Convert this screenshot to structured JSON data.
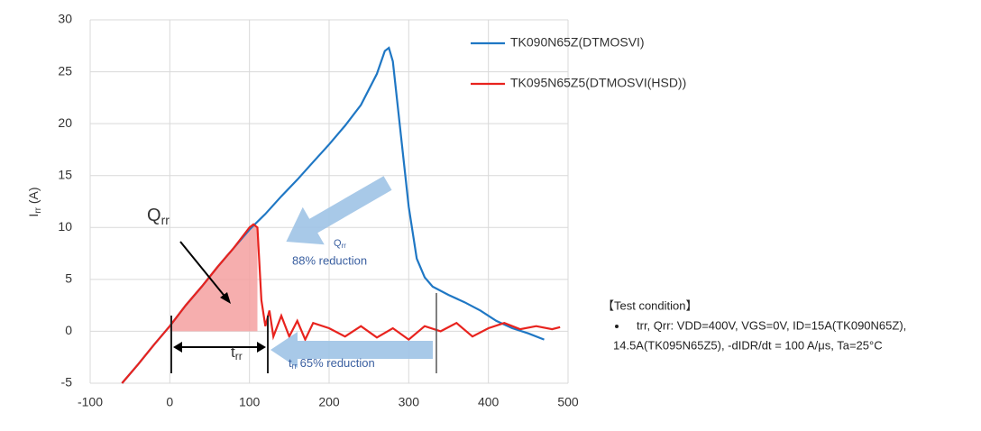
{
  "chart_data": {
    "type": "line",
    "ylabel": {
      "main": "I",
      "sub": "rr",
      "unit": " (A)"
    },
    "xlim": [
      -100,
      500
    ],
    "xticks": [
      -100,
      0,
      100,
      200,
      300,
      400,
      500
    ],
    "ylim": [
      -5,
      30
    ],
    "yticks": [
      -5,
      0,
      5,
      10,
      15,
      20,
      25,
      30
    ],
    "grid": true,
    "legend": "right",
    "series": [
      {
        "name": "TK090N65Z(DTMOSVI)",
        "color": "#1f77c4",
        "x": [
          -60,
          -40,
          -20,
          0,
          20,
          40,
          60,
          80,
          100,
          120,
          140,
          160,
          180,
          200,
          220,
          240,
          260,
          270,
          275,
          280,
          290,
          300,
          310,
          320,
          330,
          350,
          370,
          390,
          410,
          430,
          450,
          470
        ],
        "values": [
          -5,
          -3.2,
          -1.3,
          0.5,
          2.5,
          4.3,
          6.2,
          8,
          9.8,
          11.3,
          13,
          14.6,
          16.3,
          18,
          19.8,
          21.8,
          24.8,
          27,
          27.3,
          26,
          19,
          12,
          7,
          5.2,
          4.3,
          3.5,
          2.8,
          2,
          1,
          0.3,
          -0.2,
          -0.8
        ]
      },
      {
        "name": "TK095N65Z5(DTMOSVI(HSD))",
        "color": "#e8231e",
        "x": [
          -60,
          -40,
          -20,
          0,
          20,
          40,
          60,
          80,
          100,
          105,
          110,
          115,
          120,
          125,
          130,
          140,
          150,
          160,
          170,
          180,
          200,
          220,
          240,
          260,
          280,
          300,
          320,
          340,
          360,
          380,
          400,
          420,
          440,
          460,
          480,
          490
        ],
        "values": [
          -5,
          -3.2,
          -1.3,
          0.5,
          2.5,
          4.3,
          6.2,
          8,
          10,
          10.3,
          10,
          3,
          0.5,
          2,
          -0.5,
          1.5,
          -0.5,
          1,
          -0.8,
          0.8,
          0.3,
          -0.5,
          0.5,
          -0.6,
          0.3,
          -0.8,
          0.5,
          0,
          0.8,
          -0.5,
          0.3,
          0.8,
          0.2,
          0.5,
          0.2,
          0.4
        ]
      }
    ],
    "annotations": {
      "qrr_label": {
        "main": "Q",
        "sub": "rr"
      },
      "qrr_reduction": {
        "main": "Q",
        "sub": "rr",
        "text": "88% reduction"
      },
      "trr_label": {
        "main": "t",
        "sub": "rr"
      },
      "trr_reduction": {
        "main": "t",
        "sub": "rr",
        "text": "65% reduction"
      }
    },
    "test_condition": {
      "title": "【Test condition】",
      "lines": [
        "trr, Qrr: VDD=400V, VGS=0V, ID=15A(TK090N65Z),",
        "14.5A(TK095N65Z5), -dIDR/dt = 100 A/μs, Ta=25°C"
      ]
    }
  }
}
